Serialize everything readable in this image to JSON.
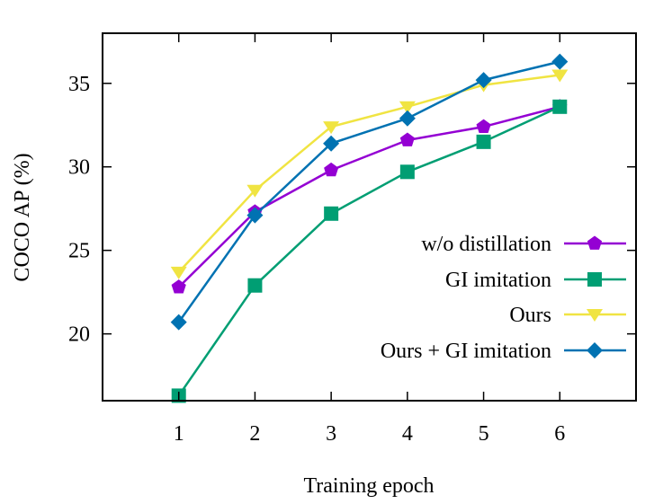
{
  "chart_data": {
    "type": "line",
    "xlabel": "Training epoch",
    "ylabel": "COCO AP (%)",
    "x": [
      1,
      2,
      3,
      4,
      5,
      6
    ],
    "xlim": [
      0,
      7
    ],
    "ylim": [
      16.0,
      38.0
    ],
    "xticks": [
      1,
      2,
      3,
      4,
      5,
      6
    ],
    "yticks": [
      20,
      25,
      30,
      35
    ],
    "grid": false,
    "legend_position": "right",
    "series": [
      {
        "name": "w/o distillation",
        "values": [
          22.8,
          27.3,
          29.8,
          31.6,
          32.4,
          33.6
        ],
        "color": "#9400d3",
        "marker": "pentagon"
      },
      {
        "name": "GI imitation",
        "values": [
          16.3,
          22.9,
          27.2,
          29.7,
          31.5,
          33.6
        ],
        "color": "#009e73",
        "marker": "square"
      },
      {
        "name": "Ours",
        "values": [
          23.7,
          28.6,
          32.4,
          33.6,
          34.9,
          35.5
        ],
        "color": "#f0e442",
        "marker": "triangle-down"
      },
      {
        "name": "Ours + GI imitation",
        "values": [
          20.7,
          27.1,
          31.4,
          32.9,
          35.2,
          36.3
        ],
        "color": "#0072b2",
        "marker": "diamond"
      }
    ]
  }
}
